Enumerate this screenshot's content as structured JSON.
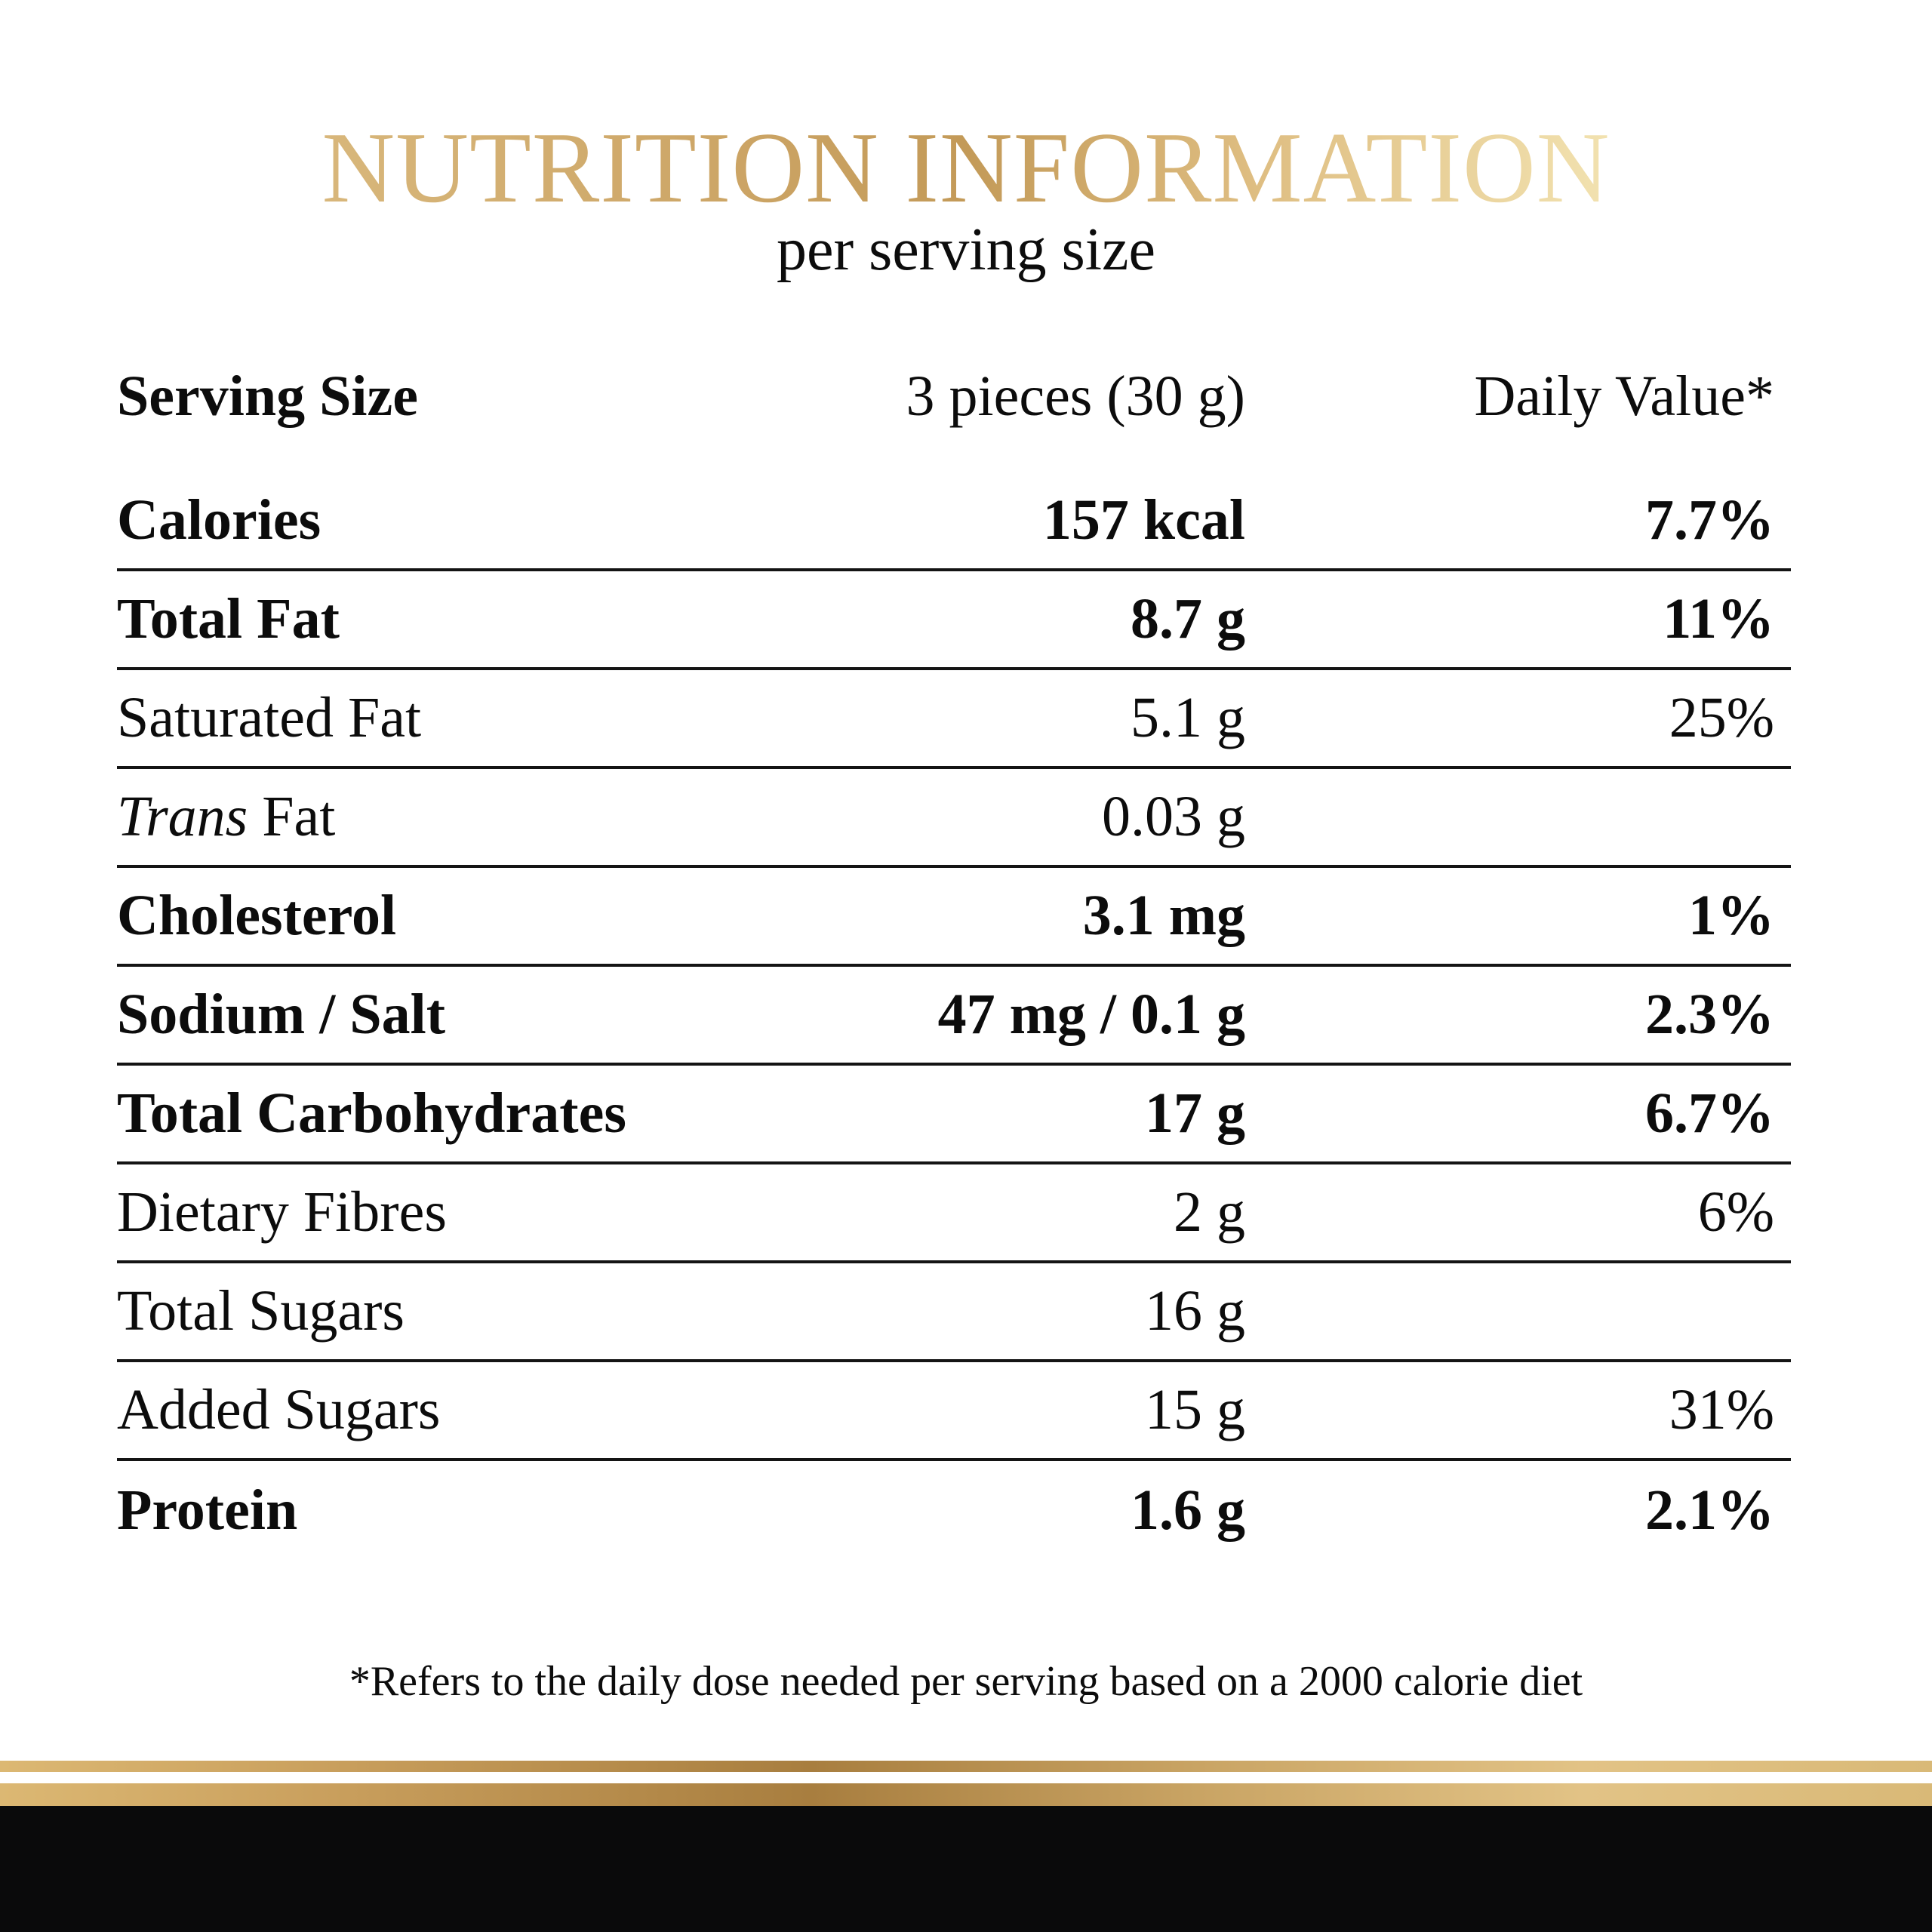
{
  "header": {
    "title": "NUTRITION INFORMATION",
    "subtitle": "per serving size"
  },
  "table": {
    "columns": {
      "label": "Serving Size",
      "value": "3 pieces (30 g)",
      "daily_value": "Daily Value*"
    },
    "rows": [
      {
        "label": "Calories",
        "value": "157 kcal",
        "daily_value": "7.7%",
        "bold": true
      },
      {
        "label": "Total Fat",
        "value": "8.7 g",
        "daily_value": "11%",
        "bold": true
      },
      {
        "label": "Saturated Fat",
        "value": "5.1 g",
        "daily_value": "25%",
        "bold": false
      },
      {
        "label_italic": "Trans",
        "label": " Fat",
        "value": "0.03 g",
        "daily_value": "",
        "bold": false
      },
      {
        "label": "Cholesterol",
        "value": "3.1 mg",
        "daily_value": "1%",
        "bold": true
      },
      {
        "label": "Sodium / Salt",
        "value": "47 mg / 0.1 g",
        "daily_value": "2.3%",
        "bold": true
      },
      {
        "label": "Total Carbohydrates",
        "value": "17 g",
        "daily_value": "6.7%",
        "bold": true
      },
      {
        "label": "Dietary Fibres",
        "value": "2 g",
        "daily_value": "6%",
        "bold": false
      },
      {
        "label": "Total Sugars",
        "value": "16 g",
        "daily_value": "",
        "bold": false
      },
      {
        "label": "Added Sugars",
        "value": "15 g",
        "daily_value": "31%",
        "bold": false
      },
      {
        "label": "Protein",
        "value": "1.6 g",
        "daily_value": "2.1%",
        "bold": true
      }
    ]
  },
  "footnote": "*Refers to the daily dose needed per serving based on a 2000 calorie diet",
  "colors": {
    "gold_light": "#F2E2B0",
    "gold_mid": "#D8B77B",
    "gold_dark": "#A87E3F",
    "text": "#0C0C0C",
    "background": "#FFFFFF",
    "bottom_band": "#0A0A0B"
  }
}
